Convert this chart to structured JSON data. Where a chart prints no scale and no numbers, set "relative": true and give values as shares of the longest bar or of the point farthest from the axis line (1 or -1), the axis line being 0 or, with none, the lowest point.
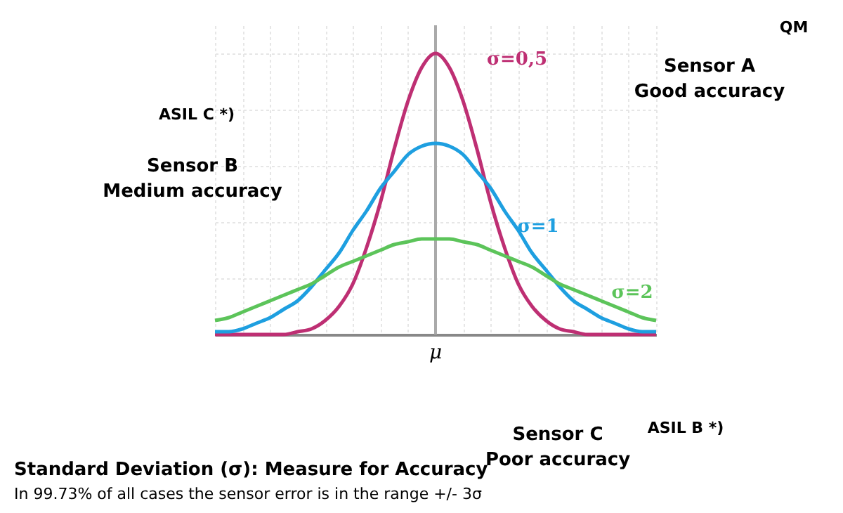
{
  "chart_data": {
    "type": "line",
    "relative": true,
    "grid": true,
    "marker": "none",
    "line_style": "solid",
    "categories": [
      null,
      null,
      null,
      null,
      null,
      null,
      null,
      null,
      null,
      null,
      null,
      null,
      null,
      null,
      null,
      null,
      null,
      null,
      null,
      null,
      null,
      null,
      null,
      null,
      null,
      null,
      null,
      null,
      null,
      null,
      null,
      null,
      null
    ],
    "series": [
      {
        "name": "σ=0,5",
        "color": "#be2f73",
        "values": [
          0,
          0,
          0,
          0,
          0,
          0,
          0.01,
          0.02,
          0.05,
          0.1,
          0.18,
          0.31,
          0.47,
          0.66,
          0.83,
          0.95,
          1,
          0.95,
          0.83,
          0.66,
          0.47,
          0.31,
          0.18,
          0.1,
          0.05,
          0.02,
          0.01,
          0,
          0,
          0,
          0,
          0,
          0
        ]
      },
      {
        "name": "σ=1",
        "color": "#1e9fe0",
        "values": [
          0.01,
          0.01,
          0.02,
          0.04,
          0.06,
          0.09,
          0.12,
          0.17,
          0.23,
          0.29,
          0.37,
          0.44,
          0.52,
          0.58,
          0.64,
          0.67,
          0.68,
          0.67,
          0.64,
          0.58,
          0.52,
          0.44,
          0.37,
          0.29,
          0.23,
          0.17,
          0.12,
          0.09,
          0.06,
          0.04,
          0.02,
          0.01,
          0.01
        ]
      },
      {
        "name": "σ=2",
        "color": "#5cc45a",
        "values": [
          0.05,
          0.06,
          0.08,
          0.1,
          0.12,
          0.14,
          0.16,
          0.18,
          0.21,
          0.24,
          0.26,
          0.28,
          0.3,
          0.32,
          0.33,
          0.34,
          0.34,
          0.34,
          0.33,
          0.32,
          0.3,
          0.28,
          0.26,
          0.24,
          0.21,
          0.18,
          0.16,
          0.14,
          0.12,
          0.1,
          0.08,
          0.06,
          0.05
        ]
      }
    ],
    "annotations": [
      "Sensor A\nGood accuracy",
      "Sensor B\nMedium accuracy",
      "μ",
      "Sensor C\nPoor accuracy",
      "QM",
      "ASIL C *)",
      "ASIL B *)",
      "Standard Deviation (σ): Measure for Accuracy",
      "In 99.73% of all cases the sensor error is in the range +/- 3σ"
    ]
  }
}
